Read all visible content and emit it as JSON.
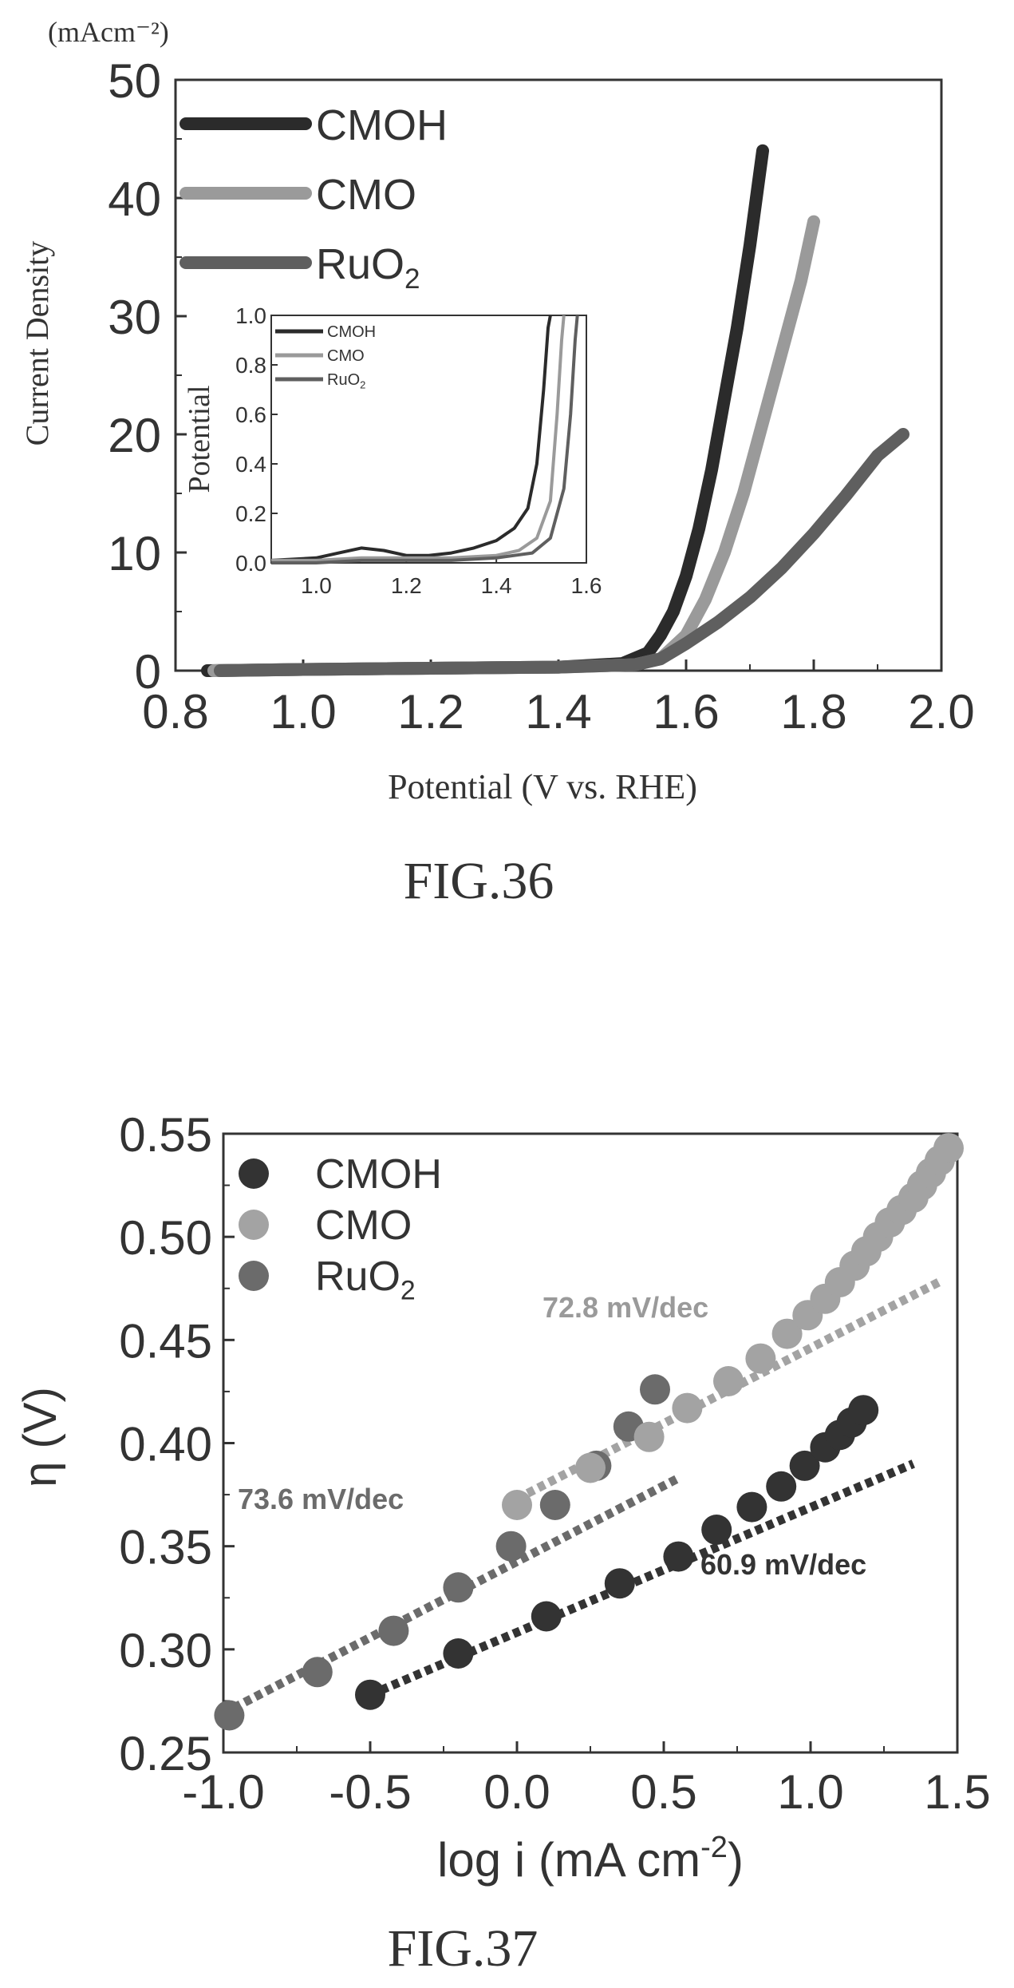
{
  "figures": {
    "fig36_caption": "FIG.36",
    "fig37_caption": "FIG.37"
  },
  "chart_data": [
    {
      "type": "line",
      "figure": "FIG.36",
      "unit_label": "(mAcm⁻²)",
      "ylabel": "Current Density",
      "xlabel": "Potential (V vs. RHE)",
      "xlim": [
        0.8,
        2.0
      ],
      "ylim": [
        0,
        50
      ],
      "x_ticks": [
        "0.8",
        "1.0",
        "1.2",
        "1.4",
        "1.6",
        "1.8",
        "2.0"
      ],
      "y_ticks": [
        "0",
        "10",
        "20",
        "30",
        "40",
        "50"
      ],
      "legend_position": "top-left",
      "series": [
        {
          "name": "CMOH",
          "label_main": "CMOH",
          "label_sub": "",
          "color": "#2b2b2b",
          "x": [
            0.85,
            1.0,
            1.2,
            1.4,
            1.5,
            1.54,
            1.56,
            1.58,
            1.6,
            1.62,
            1.64,
            1.66,
            1.68,
            1.7,
            1.72
          ],
          "y": [
            0,
            0.1,
            0.2,
            0.3,
            0.6,
            1.5,
            3,
            5,
            8,
            12,
            17,
            23,
            29,
            36,
            44
          ]
        },
        {
          "name": "CMO",
          "label_main": "CMO",
          "label_sub": "",
          "color": "#9a9a9a",
          "x": [
            0.86,
            1.0,
            1.2,
            1.4,
            1.52,
            1.56,
            1.6,
            1.63,
            1.66,
            1.69,
            1.72,
            1.75,
            1.78,
            1.8
          ],
          "y": [
            0,
            0.1,
            0.2,
            0.3,
            0.5,
            1,
            3,
            6,
            10,
            15,
            21,
            27,
            33,
            38
          ]
        },
        {
          "name": "RuO2",
          "label_main": "RuO",
          "label_sub": "2",
          "color": "#5f5f5f",
          "x": [
            0.87,
            1.0,
            1.2,
            1.4,
            1.52,
            1.56,
            1.6,
            1.65,
            1.7,
            1.75,
            1.8,
            1.85,
            1.9,
            1.94
          ],
          "y": [
            0,
            0.1,
            0.2,
            0.3,
            0.5,
            1,
            2.3,
            4.1,
            6.2,
            8.7,
            11.6,
            14.8,
            18.2,
            20
          ]
        }
      ],
      "inset": {
        "ylabel": "Potential",
        "xlim": [
          0.9,
          1.6
        ],
        "ylim": [
          0,
          1.0
        ],
        "x_ticks": [
          "1.0",
          "1.2",
          "1.4",
          "1.6"
        ],
        "y_ticks": [
          "0.0",
          "0.2",
          "0.4",
          "0.6",
          "0.8",
          "1.0"
        ],
        "series": [
          {
            "name": "CMOH",
            "label_main": "CMOH",
            "label_sub": "",
            "color": "#2b2b2b",
            "x": [
              0.9,
              1.0,
              1.05,
              1.1,
              1.15,
              1.2,
              1.25,
              1.3,
              1.35,
              1.4,
              1.44,
              1.47,
              1.49,
              1.505,
              1.515,
              1.52
            ],
            "y": [
              0.01,
              0.02,
              0.04,
              0.06,
              0.05,
              0.03,
              0.03,
              0.04,
              0.06,
              0.09,
              0.14,
              0.22,
              0.4,
              0.7,
              0.95,
              1.0
            ]
          },
          {
            "name": "CMO",
            "label_main": "CMO",
            "label_sub": "",
            "color": "#9a9a9a",
            "x": [
              0.9,
              1.0,
              1.1,
              1.2,
              1.3,
              1.4,
              1.45,
              1.49,
              1.52,
              1.535,
              1.545,
              1.55
            ],
            "y": [
              0.01,
              0.01,
              0.02,
              0.02,
              0.02,
              0.03,
              0.05,
              0.1,
              0.25,
              0.6,
              0.9,
              1.0
            ]
          },
          {
            "name": "RuO2",
            "label_main": "RuO",
            "label_sub": "2",
            "color": "#5f5f5f",
            "x": [
              0.9,
              1.0,
              1.1,
              1.2,
              1.3,
              1.4,
              1.48,
              1.52,
              1.55,
              1.565,
              1.575,
              1.58
            ],
            "y": [
              0,
              0,
              0.01,
              0.01,
              0.01,
              0.02,
              0.04,
              0.1,
              0.3,
              0.6,
              0.9,
              1.0
            ]
          }
        ]
      }
    },
    {
      "type": "scatter",
      "figure": "FIG.37",
      "ylabel": "η (V)",
      "xlabel_main": "log i (mA cm",
      "xlabel_sup": "-2",
      "xlabel_close": ")",
      "xlim": [
        -1.0,
        1.5
      ],
      "ylim": [
        0.25,
        0.55
      ],
      "x_ticks": [
        "-1.0",
        "-0.5",
        "0.0",
        "0.5",
        "1.0",
        "1.5"
      ],
      "y_ticks": [
        "0.25",
        "0.30",
        "0.35",
        "0.40",
        "0.45",
        "0.50",
        "0.55"
      ],
      "legend_position": "top-left",
      "series": [
        {
          "name": "CMOH",
          "label_main": "CMOH",
          "label_sub": "",
          "color": "#333333",
          "x": [
            -0.5,
            -0.2,
            0.1,
            0.35,
            0.55,
            0.68,
            0.8,
            0.9,
            0.98,
            1.05,
            1.1,
            1.14,
            1.18
          ],
          "y": [
            0.278,
            0.298,
            0.316,
            0.332,
            0.345,
            0.358,
            0.369,
            0.379,
            0.389,
            0.398,
            0.404,
            0.41,
            0.416
          ]
        },
        {
          "name": "CMO",
          "label_main": "CMO",
          "label_sub": "",
          "color": "#a3a3a3",
          "x": [
            0.0,
            0.25,
            0.45,
            0.58,
            0.72,
            0.83,
            0.92,
            0.99,
            1.05,
            1.1,
            1.15,
            1.19,
            1.23,
            1.27,
            1.31,
            1.35,
            1.38,
            1.41,
            1.44,
            1.47
          ],
          "y": [
            0.37,
            0.388,
            0.403,
            0.417,
            0.43,
            0.441,
            0.453,
            0.462,
            0.47,
            0.478,
            0.486,
            0.493,
            0.5,
            0.507,
            0.513,
            0.519,
            0.525,
            0.531,
            0.537,
            0.543
          ]
        },
        {
          "name": "RuO2",
          "label_main": "RuO",
          "label_sub": "2",
          "color": "#6b6b6b",
          "x": [
            -0.98,
            -0.68,
            -0.42,
            -0.2,
            -0.02,
            0.13,
            0.27,
            0.38,
            0.47
          ],
          "y": [
            0.268,
            0.289,
            0.309,
            0.33,
            0.35,
            0.37,
            0.389,
            0.408,
            0.426
          ]
        }
      ],
      "fits": [
        {
          "name": "CMOH",
          "slope_label": "60.9 mV/dec",
          "color": "#333333",
          "x": [
            -0.5,
            1.35
          ],
          "y": [
            0.278,
            0.39
          ]
        },
        {
          "name": "CMO",
          "slope_label": "72.8 mV/dec",
          "color": "#a3a3a3",
          "x": [
            0.0,
            1.45
          ],
          "y": [
            0.373,
            0.479
          ]
        },
        {
          "name": "RuO2",
          "slope_label": "73.6 mV/dec",
          "color": "#6b6b6b",
          "x": [
            -1.0,
            0.55
          ],
          "y": [
            0.269,
            0.383
          ]
        }
      ]
    }
  ]
}
